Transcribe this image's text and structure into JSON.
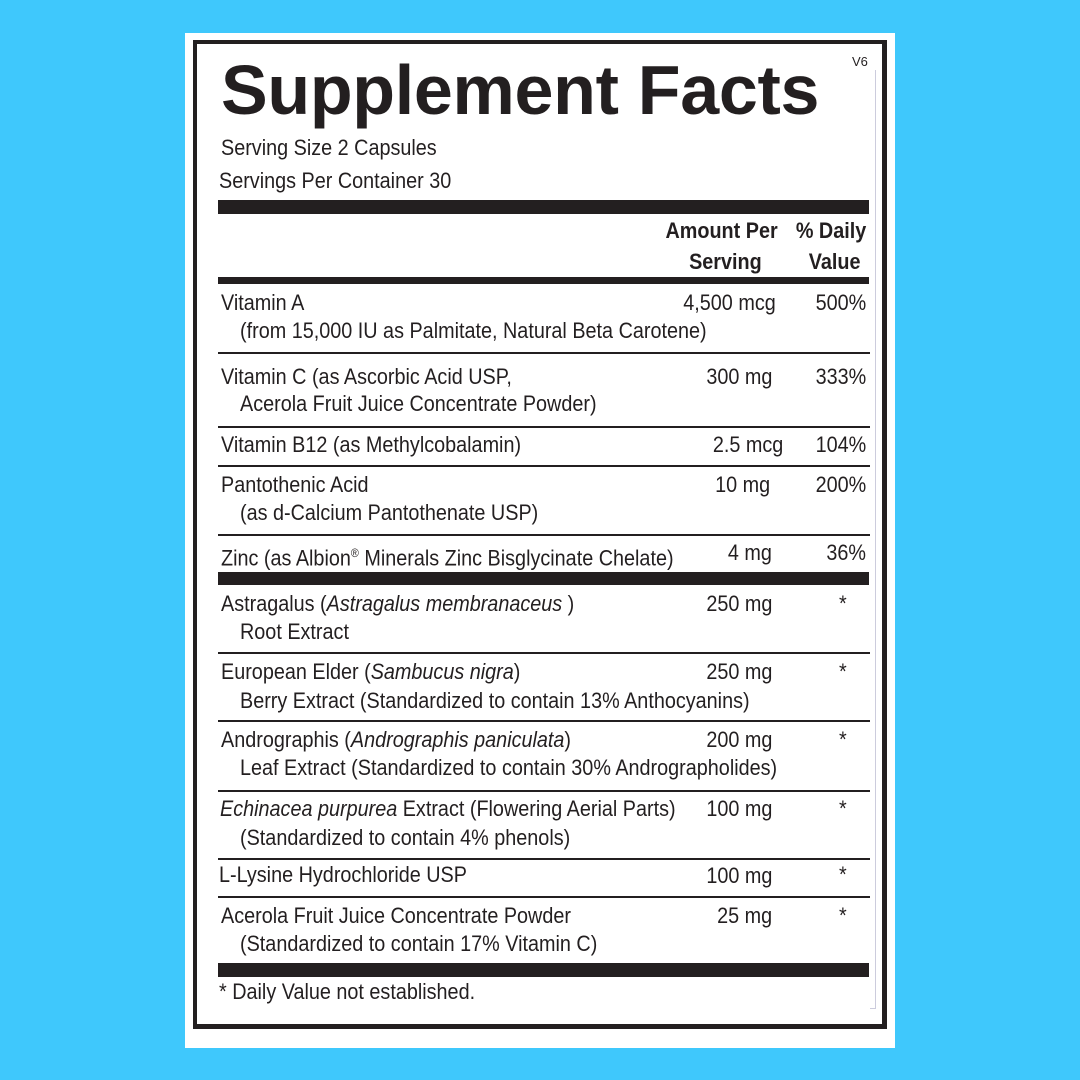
{
  "colors": {
    "background": "#3fc8fc",
    "panel": "#ffffff",
    "ink": "#231f20"
  },
  "label": {
    "title": "Supplement Facts",
    "version": "V6",
    "serving_size": "Serving Size 2 Capsules",
    "servings_per_container": "Servings Per Container 30",
    "header": {
      "amount_line1": "Amount Per",
      "amount_line2": "Serving",
      "dv_line1": "% Daily",
      "dv_line2": "Value"
    },
    "rows": [
      {
        "pre": "Vitamin A",
        "italic": "",
        "post": "",
        "line2": "(from 15,000 IU as Palmitate,  Natural Beta Carotene)",
        "amount": "4,500 mcg",
        "dv": "500%"
      },
      {
        "pre": "Vitamin C  (as Ascorbic Acid USP,",
        "italic": "",
        "post": "",
        "line2": "Acerola Fruit Juice Concentrate Powder)",
        "amount": "300 mg",
        "dv": "333%"
      },
      {
        "pre": "Vitamin B12 (as Methylcobalamin)",
        "italic": "",
        "post": "",
        "line2": "",
        "amount": "2.5 mcg",
        "dv": "104%"
      },
      {
        "pre": "Pantothenic Acid",
        "italic": "",
        "post": "",
        "line2": "(as d-Calcium Pantothenate USP)",
        "amount": "10 mg",
        "dv": "200%"
      },
      {
        "pre": "Zinc (as Albion",
        "sup": "®",
        "post": " Minerals Zinc Bisglycinate Chelate)",
        "line2": "",
        "amount": "4 mg",
        "dv": "36%"
      },
      {
        "pre": "Astragalus (",
        "italic": "Astragalus membranaceus ",
        "post": ")",
        "line2": "Root Extract",
        "amount": "250 mg",
        "dv": "*"
      },
      {
        "pre": "European Elder (",
        "italic": "Sambucus nigra",
        "post": ")",
        "line2": "Berry Extract (Standardized to contain 13% Anthocyanins)",
        "amount": "250 mg",
        "dv": "*"
      },
      {
        "pre": "Andrographis (",
        "italic": "Andrographis paniculata",
        "post": ")",
        "line2": "Leaf Extract  (Standardized to contain 30% Andrographolides)",
        "amount": "200 mg",
        "dv": "*"
      },
      {
        "pre": "",
        "italic": "Echinacea purpurea",
        "post": " Extract (Flowering Aerial Parts)",
        "line2": "(Standardized to contain 4% phenols)",
        "amount": "100 mg",
        "dv": "*"
      },
      {
        "pre": "L-Lysine Hydrochloride USP",
        "italic": "",
        "post": "",
        "line2": "",
        "amount": "100 mg",
        "dv": "*"
      },
      {
        "pre": "Acerola Fruit Juice Concentrate Powder",
        "italic": "",
        "post": "",
        "line2": "(Standardized to contain 17% Vitamin C)",
        "amount": "25 mg",
        "dv": "*"
      }
    ],
    "footnote": "* Daily Value not established."
  }
}
